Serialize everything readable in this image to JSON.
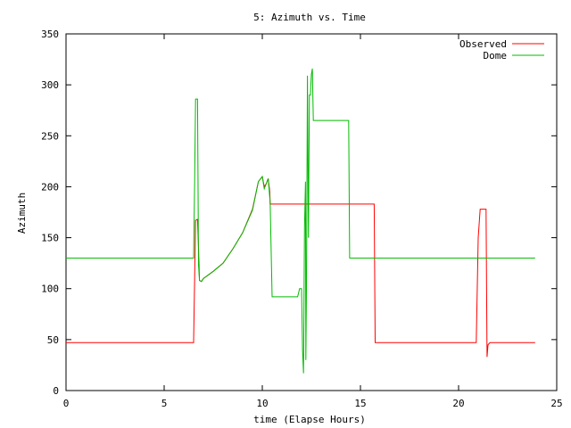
{
  "chart_data": {
    "type": "line",
    "title": "5: Azimuth vs. Time",
    "xlabel": "time (Elapse Hours)",
    "ylabel": "Azimuth",
    "xlim": [
      0,
      25
    ],
    "ylim": [
      0,
      350
    ],
    "xticks": [
      0,
      5,
      10,
      15,
      20,
      25
    ],
    "yticks": [
      0,
      50,
      100,
      150,
      200,
      250,
      300,
      350
    ],
    "grid": false,
    "legend_position": "top-right",
    "series": [
      {
        "name": "Observed",
        "color": "#ff0000",
        "points": [
          [
            0,
            47
          ],
          [
            6.5,
            47
          ],
          [
            6.6,
            167
          ],
          [
            6.7,
            168
          ],
          [
            6.75,
            140
          ],
          [
            6.8,
            108
          ],
          [
            6.9,
            107
          ],
          [
            7.0,
            110
          ],
          [
            7.5,
            117
          ],
          [
            8.0,
            125
          ],
          [
            8.5,
            139
          ],
          [
            9.0,
            155
          ],
          [
            9.5,
            178
          ],
          [
            9.8,
            205
          ],
          [
            10.0,
            210
          ],
          [
            10.1,
            200
          ],
          [
            10.2,
            203
          ],
          [
            10.3,
            208
          ],
          [
            10.38,
            195
          ],
          [
            10.4,
            183
          ],
          [
            15.7,
            183
          ],
          [
            15.75,
            47
          ],
          [
            20.9,
            47
          ],
          [
            21.0,
            150
          ],
          [
            21.1,
            178
          ],
          [
            21.4,
            178
          ],
          [
            21.45,
            33
          ],
          [
            21.5,
            45
          ],
          [
            21.6,
            47
          ],
          [
            23.9,
            47
          ]
        ]
      },
      {
        "name": "Dome",
        "color": "#00bb00",
        "points": [
          [
            0,
            130
          ],
          [
            6.5,
            130
          ],
          [
            6.55,
            200
          ],
          [
            6.6,
            286
          ],
          [
            6.7,
            286
          ],
          [
            6.75,
            123
          ],
          [
            6.8,
            108
          ],
          [
            6.9,
            107
          ],
          [
            7.0,
            110
          ],
          [
            7.5,
            117
          ],
          [
            8.0,
            125
          ],
          [
            8.5,
            139
          ],
          [
            9.0,
            155
          ],
          [
            9.5,
            177
          ],
          [
            9.8,
            205
          ],
          [
            10.0,
            210
          ],
          [
            10.1,
            198
          ],
          [
            10.2,
            203
          ],
          [
            10.3,
            208
          ],
          [
            10.4,
            185
          ],
          [
            10.5,
            92
          ],
          [
            11.8,
            92
          ],
          [
            11.9,
            100
          ],
          [
            12.0,
            100
          ],
          [
            12.05,
            40
          ],
          [
            12.1,
            17
          ],
          [
            12.15,
            160
          ],
          [
            12.2,
            205
          ],
          [
            12.22,
            30
          ],
          [
            12.25,
            100
          ],
          [
            12.3,
            309
          ],
          [
            12.35,
            150
          ],
          [
            12.4,
            290
          ],
          [
            12.45,
            290
          ],
          [
            12.5,
            310
          ],
          [
            12.55,
            316
          ],
          [
            12.6,
            265
          ],
          [
            14.4,
            265
          ],
          [
            14.45,
            130
          ],
          [
            23.9,
            130
          ]
        ]
      }
    ]
  }
}
